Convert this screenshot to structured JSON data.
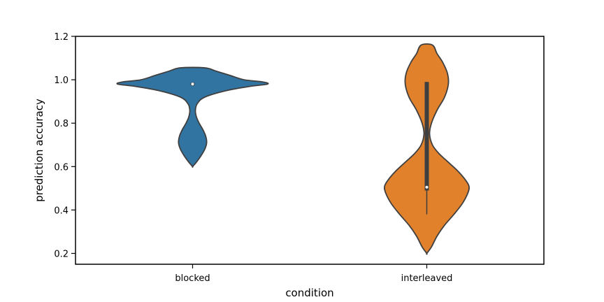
{
  "chart_data": {
    "type": "violin",
    "xlabel": "condition",
    "ylabel": "prediction accuracy",
    "ylim": [
      0.15,
      1.2
    ],
    "yticks": [
      0.2,
      0.4,
      0.6,
      0.8,
      1.0,
      1.2
    ],
    "ytick_labels": [
      "0.2",
      "0.4",
      "0.6",
      "0.8",
      "1.0",
      "1.2"
    ],
    "categories": [
      "blocked",
      "interleaved"
    ],
    "grid": false,
    "violins": [
      {
        "category": "blocked",
        "color": "#3274a1",
        "median": 0.98,
        "q1": 0.975,
        "q3": 0.985,
        "whisker_low": 0.975,
        "whisker_high": 0.985,
        "density_profile": [
          [
            0.6,
            0.0
          ],
          [
            0.62,
            0.04
          ],
          [
            0.65,
            0.09
          ],
          [
            0.68,
            0.13
          ],
          [
            0.71,
            0.15
          ],
          [
            0.74,
            0.14
          ],
          [
            0.77,
            0.11
          ],
          [
            0.8,
            0.07
          ],
          [
            0.83,
            0.04
          ],
          [
            0.86,
            0.03
          ],
          [
            0.89,
            0.05
          ],
          [
            0.92,
            0.13
          ],
          [
            0.95,
            0.36
          ],
          [
            0.97,
            0.62
          ],
          [
            0.98,
            0.8
          ],
          [
            0.99,
            0.75
          ],
          [
            1.0,
            0.55
          ],
          [
            1.02,
            0.4
          ],
          [
            1.04,
            0.25
          ],
          [
            1.055,
            0.13
          ]
        ]
      },
      {
        "category": "interleaved",
        "color": "#e1812c",
        "median": 0.505,
        "q1": 0.49,
        "q3": 0.99,
        "whisker_low": 0.38,
        "whisker_high": 0.99,
        "density_profile": [
          [
            0.2,
            0.0
          ],
          [
            0.23,
            0.05
          ],
          [
            0.28,
            0.11
          ],
          [
            0.33,
            0.19
          ],
          [
            0.38,
            0.29
          ],
          [
            0.43,
            0.38
          ],
          [
            0.48,
            0.44
          ],
          [
            0.51,
            0.45
          ],
          [
            0.54,
            0.41
          ],
          [
            0.58,
            0.33
          ],
          [
            0.62,
            0.23
          ],
          [
            0.66,
            0.13
          ],
          [
            0.7,
            0.06
          ],
          [
            0.75,
            0.03
          ],
          [
            0.8,
            0.05
          ],
          [
            0.86,
            0.11
          ],
          [
            0.92,
            0.19
          ],
          [
            0.98,
            0.23
          ],
          [
            1.03,
            0.22
          ],
          [
            1.08,
            0.17
          ],
          [
            1.12,
            0.11
          ],
          [
            1.16,
            0.06
          ]
        ]
      }
    ]
  }
}
